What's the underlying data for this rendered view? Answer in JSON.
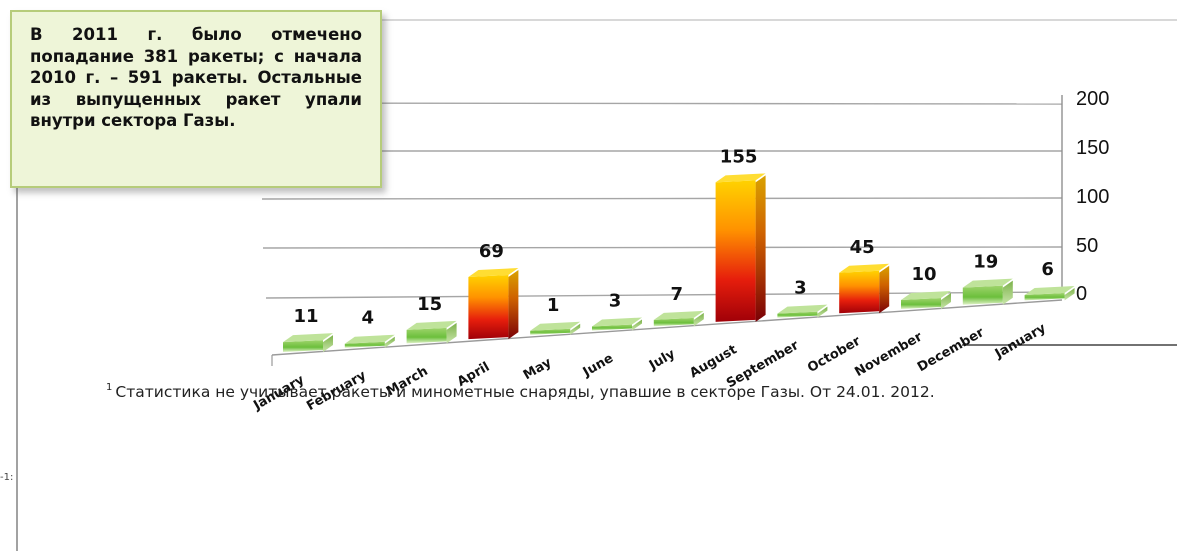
{
  "callout": {
    "text": "В 2011 г. было отмечено попадание 381 ракеты; с начала 2010 г. – 591 ракеты. Остальные из выпущенных ракет упали внутри сектора Газы."
  },
  "footnote": {
    "number": "1",
    "text": "Статистика не учитывает ракеты и минометные снаряды, упавшие в секторе Газы. От 24.01. 2012."
  },
  "edge_text": "-1:",
  "colors": {
    "green_top": "#bfe39a",
    "green_front": "#6cbf3c",
    "hot_top": "#ffd000",
    "hot_bottom": "#b5000c",
    "grid": "#9a9a9a"
  },
  "chart_data": {
    "type": "bar",
    "categories": [
      "January",
      "February",
      "March",
      "April",
      "May",
      "June",
      "July",
      "August",
      "September",
      "October",
      "November",
      "December",
      "January"
    ],
    "values": [
      11,
      4,
      15,
      69,
      1,
      3,
      7,
      155,
      3,
      45,
      10,
      19,
      6
    ],
    "data_labels": [
      "11",
      "4",
      "15",
      "69",
      "1",
      "3",
      "7",
      "155",
      "3",
      "45",
      "10",
      "19",
      "6"
    ],
    "y_ticks": [
      "0",
      "50",
      "100",
      "150",
      "200"
    ],
    "ylim": [
      0,
      200
    ],
    "title": "",
    "xlabel": "",
    "ylabel": "",
    "grid": true,
    "legend": "none",
    "style": "3d-bar"
  }
}
